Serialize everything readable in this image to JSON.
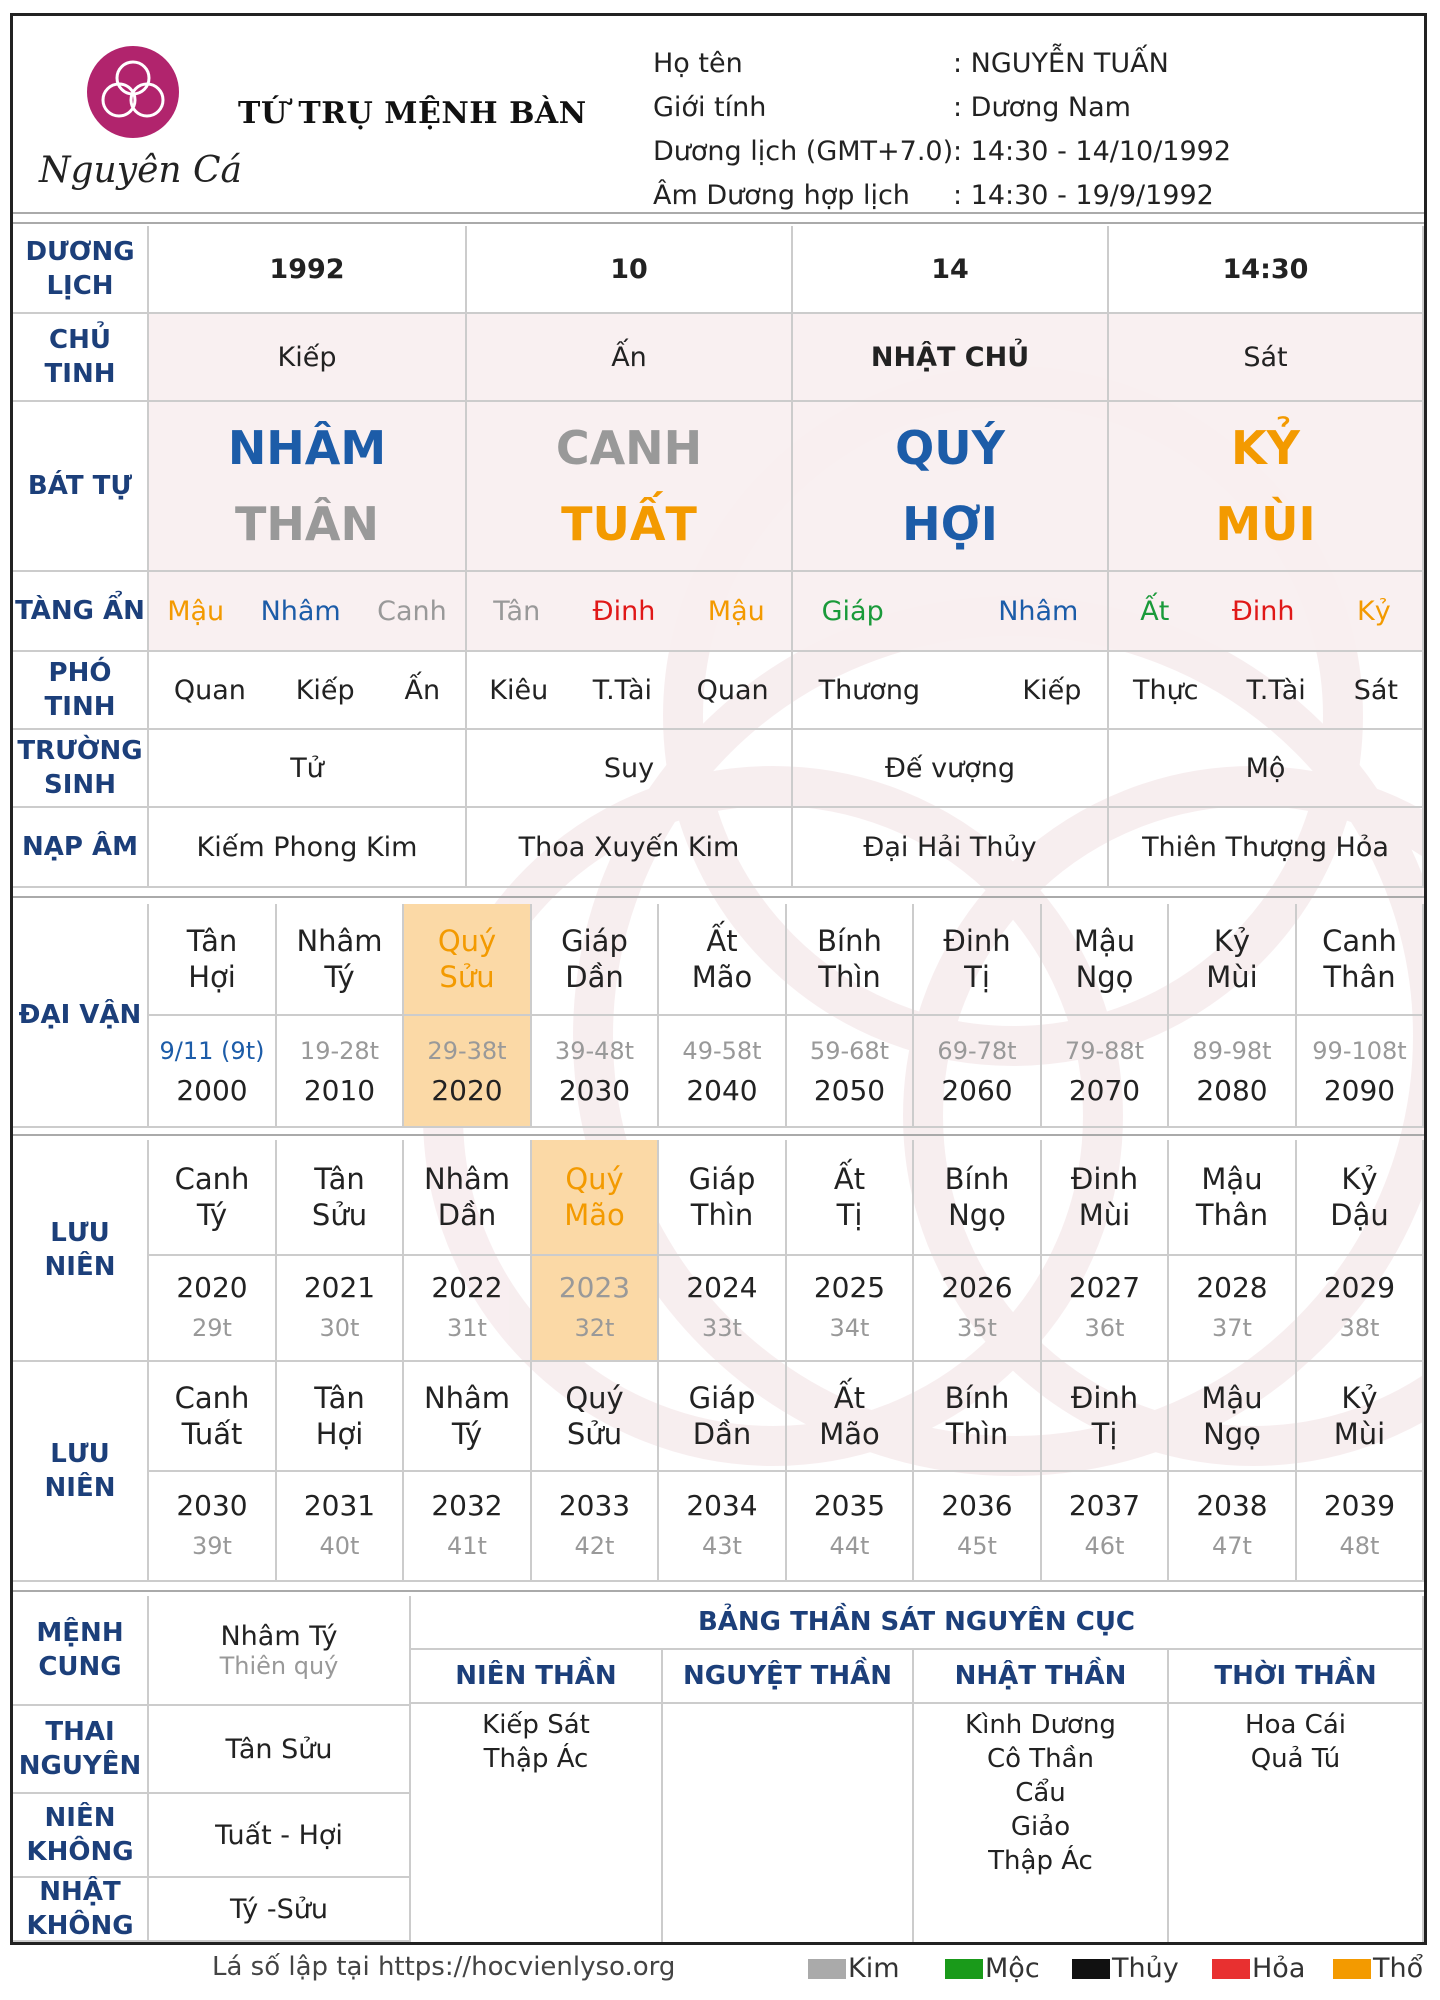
{
  "header": {
    "title": "TỨ TRỤ MỆNH BÀN",
    "brand": "Nguyên Cát",
    "info": [
      {
        "label": "Họ tên",
        "value": ": NGUYỄN TUẤN"
      },
      {
        "label": "Giới tính",
        "value": ": Dương Nam"
      },
      {
        "label": "Dương lịch (GMT+7.0)",
        "value": ": 14:30 - 14/10/1992"
      },
      {
        "label": "Âm Dương hợp lịch",
        "value": ": 14:30 - 19/9/1992"
      }
    ]
  },
  "rows": {
    "duong_lich": {
      "label": "DƯƠNG LỊCH",
      "values": [
        "1992",
        "10",
        "14",
        "14:30"
      ]
    },
    "chu_tinh": {
      "label": "CHỦ TINH",
      "values": [
        "Kiếp",
        "Ấn",
        "NHẬT CHỦ",
        "Sát"
      ]
    },
    "bat_tu": {
      "label": "BÁT TỰ",
      "top": [
        "NHÂM",
        "CANH",
        "QUÝ",
        "KỶ"
      ],
      "bottom": [
        "THÂN",
        "TUẤT",
        "HỢI",
        "MÙI"
      ]
    },
    "tang_an": {
      "label": "TÀNG ẨN",
      "values": [
        [
          "Mậu",
          "Nhâm",
          "Canh"
        ],
        [
          "Tân",
          "Đinh",
          "Mậu"
        ],
        [
          "Giáp",
          "",
          "Nhâm"
        ],
        [
          "Ất",
          "Đinh",
          "Kỷ"
        ]
      ]
    },
    "pho_tinh": {
      "label": "PHÓ TINH",
      "values": [
        [
          "Quan",
          "Kiếp",
          "Ấn"
        ],
        [
          "Kiêu",
          "T.Tài",
          "Quan"
        ],
        [
          "Thương",
          "",
          "Kiếp"
        ],
        [
          "Thực",
          "T.Tài",
          "Sát"
        ]
      ]
    },
    "truong_sinh": {
      "label": "TRƯỜNG SINH",
      "values": [
        "Tử",
        "Suy",
        "Đế vượng",
        "Mộ"
      ]
    },
    "nap_am": {
      "label": "NẠP ÂM",
      "values": [
        "Kiếm Phong Kim",
        "Thoa Xuyến Kim",
        "Đại Hải Thủy",
        "Thiên Thượng Hỏa"
      ]
    }
  },
  "dai_van": {
    "label": "ĐẠI VẬN",
    "items": [
      {
        "can": "Tân",
        "chi": "Hợi",
        "age": "9/11 (9t)",
        "year": "2000"
      },
      {
        "can": "Nhâm",
        "chi": "Tý",
        "age": "19-28t",
        "year": "2010"
      },
      {
        "can": "Quý",
        "chi": "Sửu",
        "age": "29-38t",
        "year": "2020"
      },
      {
        "can": "Giáp",
        "chi": "Dần",
        "age": "39-48t",
        "year": "2030"
      },
      {
        "can": "Ất",
        "chi": "Mão",
        "age": "49-58t",
        "year": "2040"
      },
      {
        "can": "Bính",
        "chi": "Thìn",
        "age": "59-68t",
        "year": "2050"
      },
      {
        "can": "Đinh",
        "chi": "Tị",
        "age": "69-78t",
        "year": "2060"
      },
      {
        "can": "Mậu",
        "chi": "Ngọ",
        "age": "79-88t",
        "year": "2070"
      },
      {
        "can": "Kỷ",
        "chi": "Mùi",
        "age": "89-98t",
        "year": "2080"
      },
      {
        "can": "Canh",
        "chi": "Thân",
        "age": "99-108t",
        "year": "2090"
      }
    ]
  },
  "luu_nien_1": {
    "label": "LƯU NIÊN",
    "items": [
      {
        "can": "Canh",
        "chi": "Tý",
        "year": "2020",
        "age": "29t"
      },
      {
        "can": "Tân",
        "chi": "Sửu",
        "year": "2021",
        "age": "30t"
      },
      {
        "can": "Nhâm",
        "chi": "Dần",
        "year": "2022",
        "age": "31t"
      },
      {
        "can": "Quý",
        "chi": "Mão",
        "year": "2023",
        "age": "32t"
      },
      {
        "can": "Giáp",
        "chi": "Thìn",
        "year": "2024",
        "age": "33t"
      },
      {
        "can": "Ất",
        "chi": "Tị",
        "year": "2025",
        "age": "34t"
      },
      {
        "can": "Bính",
        "chi": "Ngọ",
        "year": "2026",
        "age": "35t"
      },
      {
        "can": "Đinh",
        "chi": "Mùi",
        "year": "2027",
        "age": "36t"
      },
      {
        "can": "Mậu",
        "chi": "Thân",
        "year": "2028",
        "age": "37t"
      },
      {
        "can": "Kỷ",
        "chi": "Dậu",
        "year": "2029",
        "age": "38t"
      }
    ]
  },
  "luu_nien_2": {
    "label": "LƯU NIÊN",
    "items": [
      {
        "can": "Canh",
        "chi": "Tuất",
        "year": "2030",
        "age": "39t"
      },
      {
        "can": "Tân",
        "chi": "Hợi",
        "year": "2031",
        "age": "40t"
      },
      {
        "can": "Nhâm",
        "chi": "Tý",
        "year": "2032",
        "age": "41t"
      },
      {
        "can": "Quý",
        "chi": "Sửu",
        "year": "2033",
        "age": "42t"
      },
      {
        "can": "Giáp",
        "chi": "Dần",
        "year": "2034",
        "age": "43t"
      },
      {
        "can": "Ất",
        "chi": "Mão",
        "year": "2035",
        "age": "44t"
      },
      {
        "can": "Bính",
        "chi": "Thìn",
        "year": "2036",
        "age": "45t"
      },
      {
        "can": "Đinh",
        "chi": "Tị",
        "year": "2037",
        "age": "46t"
      },
      {
        "can": "Mậu",
        "chi": "Ngọ",
        "year": "2038",
        "age": "47t"
      },
      {
        "can": "Kỷ",
        "chi": "Mùi",
        "year": "2039",
        "age": "48t"
      }
    ]
  },
  "bottom": {
    "menh_cung": {
      "label": "MỆNH CUNG",
      "value": "Nhâm Tý",
      "sub": "Thiên quý"
    },
    "thai_nguyen": {
      "label": "THAI NGUYÊN",
      "value": "Tân Sửu"
    },
    "nien_khong": {
      "label": "NIÊN KHÔNG",
      "value": "Tuất - Hợi"
    },
    "nhat_khong": {
      "label": "NHẬT KHÔNG",
      "value": "Tý -Sửu"
    },
    "than_sat": {
      "title": "BẢNG THẦN SÁT NGUYÊN CỤC",
      "columns": [
        "NIÊN THẦN",
        "NGUYỆT THẦN",
        "NHẬT THẦN",
        "THỜI THẦN"
      ],
      "values": [
        [
          "Kiếp Sát",
          "Thập Ác"
        ],
        [],
        [
          "Kình Dương",
          "Cô Thần",
          "Cẩu",
          "Giảo",
          "Thập Ác"
        ],
        [
          "Hoa Cái",
          "Quả Tú"
        ]
      ]
    }
  },
  "footer": {
    "note": "Lá số lập tại https://hocvienlyso.org",
    "legend": [
      {
        "name": "Kim",
        "color": "#aaaaaa"
      },
      {
        "name": "Mộc",
        "color": "#1a9a1a"
      },
      {
        "name": "Thủy",
        "color": "#111111"
      },
      {
        "name": "Hỏa",
        "color": "#e83030"
      },
      {
        "name": "Thổ",
        "color": "#f39a00"
      }
    ]
  }
}
